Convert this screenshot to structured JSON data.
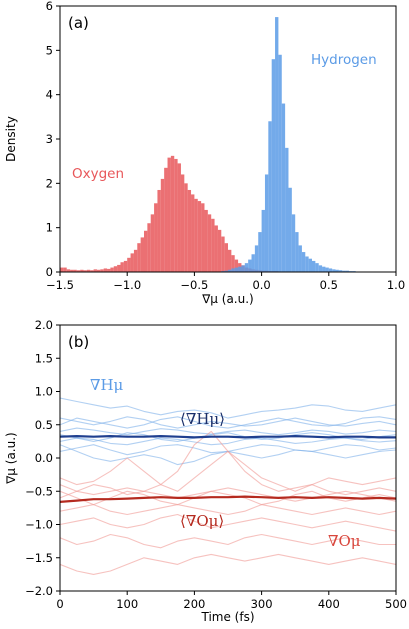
{
  "chart_data": [
    {
      "type": "bar",
      "panel_label": "(a)",
      "xlabel": "∇μ (a.u.)",
      "ylabel": "Density",
      "xlim": [
        -1.5,
        1.0
      ],
      "ylim": [
        0,
        6
      ],
      "xticks": [
        "−1.5",
        "−1.0",
        "−0.5",
        "0.0",
        "0.5",
        "1.0"
      ],
      "yticks": [
        "0",
        "1",
        "2",
        "3",
        "4",
        "5",
        "6"
      ],
      "grid": false,
      "bin_width": 0.025,
      "series": [
        {
          "name": "Oxygen",
          "color": "#e8575a",
          "bins_start": -1.5,
          "values": [
            0.1,
            0.1,
            0.06,
            0.05,
            0.05,
            0.04,
            0.05,
            0.04,
            0.05,
            0.04,
            0.06,
            0.05,
            0.06,
            0.08,
            0.07,
            0.1,
            0.13,
            0.16,
            0.22,
            0.25,
            0.32,
            0.42,
            0.5,
            0.65,
            0.78,
            0.93,
            1.1,
            1.3,
            1.55,
            1.85,
            2.1,
            2.35,
            2.58,
            2.62,
            2.55,
            2.45,
            2.2,
            2.0,
            1.85,
            1.75,
            1.65,
            1.6,
            1.55,
            1.4,
            1.3,
            1.2,
            1.05,
            0.95,
            0.8,
            0.65,
            0.5,
            0.38,
            0.28,
            0.2,
            0.15,
            0.1,
            0.08,
            0.06,
            0.05,
            0.04,
            0.03,
            0.03,
            0.02,
            0.02,
            0.02,
            0.01,
            0.01,
            0.01
          ]
        },
        {
          "name": "Hydrogen",
          "color": "#5b9be6",
          "bins_start": -0.3,
          "values": [
            0.02,
            0.03,
            0.05,
            0.08,
            0.1,
            0.12,
            0.15,
            0.2,
            0.28,
            0.4,
            0.6,
            0.9,
            1.4,
            2.2,
            3.4,
            4.8,
            5.75,
            4.9,
            3.8,
            2.8,
            1.9,
            1.3,
            0.9,
            0.6,
            0.45,
            0.35,
            0.3,
            0.25,
            0.2,
            0.15,
            0.12,
            0.1,
            0.08,
            0.06,
            0.05,
            0.04,
            0.03,
            0.03,
            0.02,
            0.02,
            0.01,
            0.01,
            0.01,
            0.01,
            0.01,
            0.01,
            0.01,
            0.01
          ]
        }
      ],
      "annotations": [
        {
          "text": "Oxygen",
          "color": "#e8575a"
        },
        {
          "text": "Hydrogen",
          "color": "#5b9be6"
        }
      ]
    },
    {
      "type": "line",
      "panel_label": "(b)",
      "xlabel": "Time (fs)",
      "ylabel": "∇μ (a.u.)",
      "xlim": [
        0,
        500
      ],
      "ylim": [
        -2.0,
        2.0
      ],
      "xticks": [
        "0",
        "100",
        "200",
        "300",
        "400",
        "500"
      ],
      "yticks": [
        "−2.0",
        "−1.5",
        "−1.0",
        "−0.5",
        "0.0",
        "0.5",
        "1.0",
        "1.5",
        "2.0"
      ],
      "grid": false,
      "x": [
        0,
        25,
        50,
        75,
        100,
        125,
        150,
        175,
        200,
        225,
        250,
        275,
        300,
        325,
        350,
        375,
        400,
        425,
        450,
        475,
        500
      ],
      "series": [
        {
          "name": "⟨∇Hμ⟩",
          "color": "#1f3f8f",
          "role": "mean",
          "values": [
            0.32,
            0.33,
            0.32,
            0.33,
            0.32,
            0.32,
            0.33,
            0.32,
            0.31,
            0.32,
            0.32,
            0.31,
            0.32,
            0.32,
            0.33,
            0.32,
            0.31,
            0.32,
            0.32,
            0.31,
            0.31
          ]
        },
        {
          "name": "⟨∇Oμ⟩",
          "color": "#b52a1f",
          "role": "mean",
          "values": [
            -0.66,
            -0.64,
            -0.62,
            -0.62,
            -0.61,
            -0.6,
            -0.59,
            -0.6,
            -0.6,
            -0.59,
            -0.59,
            -0.58,
            -0.59,
            -0.6,
            -0.59,
            -0.6,
            -0.59,
            -0.6,
            -0.61,
            -0.6,
            -0.61
          ]
        },
        {
          "name": "∇Hμ",
          "color": "#7fb0ea",
          "role": "individual",
          "values": [
            0.9,
            0.85,
            0.8,
            0.75,
            0.78,
            0.7,
            0.65,
            0.7,
            0.72,
            0.68,
            0.6,
            0.65,
            0.7,
            0.72,
            0.75,
            0.8,
            0.78,
            0.72,
            0.7,
            0.75,
            0.8
          ]
        },
        {
          "name": "∇Hμ",
          "color": "#7fb0ea",
          "role": "individual",
          "values": [
            0.6,
            0.55,
            0.5,
            0.55,
            0.62,
            0.58,
            0.5,
            0.45,
            0.5,
            0.55,
            0.52,
            0.48,
            0.5,
            0.55,
            0.6,
            0.55,
            0.5,
            0.48,
            0.52,
            0.55,
            0.5
          ]
        },
        {
          "name": "∇Hμ",
          "color": "#7fb0ea",
          "role": "individual",
          "values": [
            0.4,
            0.45,
            0.42,
            0.38,
            0.35,
            0.4,
            0.44,
            0.42,
            0.38,
            0.36,
            0.4,
            0.42,
            0.38,
            0.35,
            0.38,
            0.42,
            0.4,
            0.36,
            0.38,
            0.42,
            0.4
          ]
        },
        {
          "name": "∇Hμ",
          "color": "#7fb0ea",
          "role": "individual",
          "values": [
            0.25,
            0.3,
            0.28,
            0.22,
            0.2,
            0.25,
            0.3,
            0.28,
            0.24,
            0.2,
            0.22,
            0.28,
            0.3,
            0.26,
            0.22,
            0.24,
            0.28,
            0.3,
            0.26,
            0.24,
            0.26
          ]
        },
        {
          "name": "∇Hμ",
          "color": "#7fb0ea",
          "role": "individual",
          "values": [
            0.1,
            0.15,
            0.2,
            0.12,
            0.05,
            0.1,
            0.18,
            0.2,
            0.15,
            0.08,
            0.1,
            0.15,
            0.2,
            0.18,
            0.12,
            0.1,
            0.15,
            0.2,
            0.18,
            0.12,
            0.15
          ]
        },
        {
          "name": "∇Hμ",
          "color": "#7fb0ea",
          "role": "individual",
          "values": [
            0.2,
            0.1,
            0.0,
            -0.05,
            0.0,
            0.05,
            0.0,
            -0.1,
            -0.05,
            0.05,
            0.1,
            0.05,
            0.0,
            0.05,
            0.12,
            0.1,
            0.05,
            0.0,
            0.05,
            0.1,
            0.12
          ]
        },
        {
          "name": "∇Hμ",
          "color": "#7fb0ea",
          "role": "individual",
          "values": [
            0.5,
            0.6,
            0.55,
            0.5,
            0.45,
            0.5,
            0.58,
            0.62,
            0.55,
            0.48,
            0.45,
            0.5,
            0.55,
            0.6,
            0.55,
            0.5,
            0.48,
            0.52,
            0.6,
            0.62,
            0.58
          ]
        },
        {
          "name": "∇Hμ",
          "color": "#7fb0ea",
          "role": "individual",
          "values": [
            0.35,
            0.3,
            0.25,
            0.3,
            0.38,
            0.35,
            0.28,
            0.25,
            0.3,
            0.35,
            0.38,
            0.32,
            0.28,
            0.3,
            0.35,
            0.38,
            0.35,
            0.3,
            0.28,
            0.32,
            0.35
          ]
        },
        {
          "name": "∇Oμ",
          "color": "#f09a95",
          "role": "individual",
          "values": [
            -0.3,
            -0.4,
            -0.35,
            -0.2,
            0.0,
            -0.2,
            -0.4,
            -0.5,
            -0.3,
            -0.1,
            0.1,
            -0.1,
            -0.3,
            -0.4,
            -0.5,
            -0.4,
            -0.3,
            -0.35,
            -0.4,
            -0.35,
            -0.3
          ]
        },
        {
          "name": "∇Oμ",
          "color": "#f09a95",
          "role": "individual",
          "values": [
            -0.5,
            -0.6,
            -0.7,
            -0.6,
            -0.5,
            -0.55,
            -0.65,
            -0.7,
            -0.6,
            -0.5,
            -0.55,
            -0.6,
            -0.7,
            -0.65,
            -0.55,
            -0.5,
            -0.6,
            -0.65,
            -0.6,
            -0.55,
            -0.6
          ]
        },
        {
          "name": "∇Oμ",
          "color": "#f09a95",
          "role": "individual",
          "values": [
            -0.8,
            -0.75,
            -0.7,
            -0.8,
            -0.85,
            -0.8,
            -0.75,
            -0.7,
            -0.75,
            -0.8,
            -0.85,
            -0.8,
            -0.7,
            -0.75,
            -0.8,
            -0.85,
            -0.8,
            -0.75,
            -0.8,
            -0.85,
            -0.8
          ]
        },
        {
          "name": "∇Oμ",
          "color": "#f09a95",
          "role": "individual",
          "values": [
            -1.0,
            -0.95,
            -0.9,
            -1.0,
            -1.05,
            -1.0,
            -0.9,
            -0.85,
            -0.95,
            -1.05,
            -1.0,
            -0.95,
            -0.9,
            -0.95,
            -1.0,
            -1.05,
            -1.0,
            -0.95,
            -1.0,
            -1.05,
            -1.1
          ]
        },
        {
          "name": "∇Oμ",
          "color": "#f09a95",
          "role": "individual",
          "values": [
            -1.2,
            -1.3,
            -1.25,
            -1.15,
            -1.2,
            -1.3,
            -1.35,
            -1.25,
            -1.2,
            -1.25,
            -1.3,
            -1.2,
            -1.15,
            -1.2,
            -1.25,
            -1.3,
            -1.25,
            -1.2,
            -1.25,
            -1.3,
            -1.3
          ]
        },
        {
          "name": "∇Oμ",
          "color": "#f09a95",
          "role": "individual",
          "values": [
            -1.6,
            -1.7,
            -1.75,
            -1.7,
            -1.6,
            -1.5,
            -1.55,
            -1.6,
            -1.5,
            -1.45,
            -1.5,
            -1.55,
            -1.5,
            -1.45,
            -1.5,
            -1.55,
            -1.6,
            -1.55,
            -1.5,
            -1.55,
            -1.6
          ]
        },
        {
          "name": "∇Oμ",
          "color": "#f09a95",
          "role": "individual",
          "values": [
            -0.6,
            -0.5,
            -0.4,
            -0.45,
            -0.55,
            -0.5,
            -0.4,
            -0.2,
            0.2,
            0.4,
            0.1,
            -0.2,
            -0.4,
            -0.5,
            -0.45,
            -0.4,
            -0.5,
            -0.55,
            -0.5,
            -0.45,
            -0.5
          ]
        },
        {
          "name": "∇Oμ",
          "color": "#f09a95",
          "role": "individual",
          "values": [
            -0.4,
            -0.5,
            -0.55,
            -0.5,
            -0.45,
            -0.5,
            -0.55,
            -0.6,
            -0.55,
            -0.5,
            -0.45,
            -0.5,
            -0.55,
            -0.6,
            -0.65,
            -0.6,
            -0.55,
            -0.5,
            -0.55,
            -0.6,
            -0.65
          ]
        }
      ],
      "annotations": [
        {
          "text": "∇Hμ",
          "color": "#5b9be6"
        },
        {
          "text": "⟨∇Hμ⟩",
          "color": "#1a2f6a"
        },
        {
          "text": "⟨∇Oμ⟩",
          "color": "#b52a1f"
        },
        {
          "text": "∇Oμ",
          "color": "#d8463c"
        }
      ]
    }
  ]
}
